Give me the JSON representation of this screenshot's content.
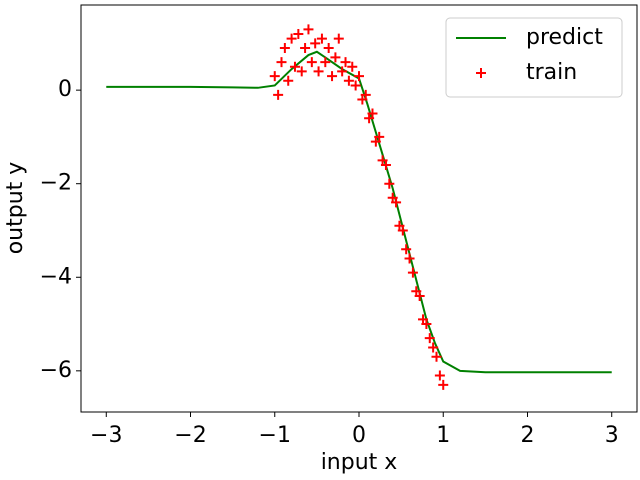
{
  "chart_data": {
    "type": "line",
    "xlabel": "input x",
    "ylabel": "output y",
    "xlim": [
      -3.3,
      3.3
    ],
    "ylim": [
      -6.88,
      1.82
    ],
    "xticks": [
      {
        "value": -3,
        "label": "−3"
      },
      {
        "value": -2,
        "label": "−2"
      },
      {
        "value": -1,
        "label": "−1"
      },
      0,
      1,
      2,
      3
    ],
    "yticks": [
      {
        "value": -6,
        "label": "−6"
      },
      {
        "value": -4,
        "label": "−4"
      },
      {
        "value": -2,
        "label": "−2"
      },
      0
    ],
    "legend": "upper right",
    "series": [
      {
        "name": "predict",
        "type": "line",
        "color": "#008000",
        "x": [
          -3,
          -2,
          -1.5,
          -1.2,
          -1,
          -0.8,
          -0.6,
          -0.5,
          -0.4,
          -0.2,
          0,
          0.1,
          0.2,
          0.3,
          0.4,
          0.5,
          0.6,
          0.7,
          0.8,
          0.9,
          1.0,
          1.2,
          1.5,
          2,
          3
        ],
        "values": [
          0.07,
          0.07,
          0.06,
          0.05,
          0.1,
          0.45,
          0.75,
          0.82,
          0.7,
          0.45,
          0.25,
          -0.3,
          -0.9,
          -1.5,
          -2.1,
          -2.8,
          -3.5,
          -4.2,
          -4.9,
          -5.4,
          -5.8,
          -6.0,
          -6.03,
          -6.03,
          -6.03
        ]
      },
      {
        "name": "train",
        "type": "scatter",
        "color": "#ff0000",
        "x": [
          -1.0,
          -0.96,
          -0.92,
          -0.88,
          -0.84,
          -0.8,
          -0.76,
          -0.72,
          -0.68,
          -0.64,
          -0.6,
          -0.56,
          -0.52,
          -0.48,
          -0.44,
          -0.4,
          -0.36,
          -0.32,
          -0.28,
          -0.24,
          -0.2,
          -0.16,
          -0.12,
          -0.08,
          -0.04,
          0.0,
          0.04,
          0.08,
          0.12,
          0.16,
          0.2,
          0.24,
          0.28,
          0.32,
          0.36,
          0.4,
          0.44,
          0.48,
          0.52,
          0.56,
          0.6,
          0.64,
          0.68,
          0.72,
          0.76,
          0.8,
          0.84,
          0.88,
          0.92,
          0.96,
          1.0
        ],
        "values": [
          0.3,
          -0.1,
          0.6,
          0.9,
          0.2,
          1.1,
          0.5,
          1.2,
          0.4,
          0.9,
          1.3,
          0.6,
          1.0,
          0.4,
          1.1,
          0.6,
          0.9,
          0.3,
          0.7,
          1.1,
          0.4,
          0.6,
          0.2,
          0.5,
          0.1,
          0.3,
          -0.2,
          -0.1,
          -0.6,
          -0.5,
          -1.1,
          -1.0,
          -1.5,
          -1.6,
          -2.0,
          -2.3,
          -2.4,
          -2.9,
          -3.0,
          -3.4,
          -3.6,
          -3.9,
          -4.3,
          -4.4,
          -4.9,
          -5.0,
          -5.3,
          -5.5,
          -5.7,
          -6.1,
          -6.3
        ]
      }
    ]
  }
}
